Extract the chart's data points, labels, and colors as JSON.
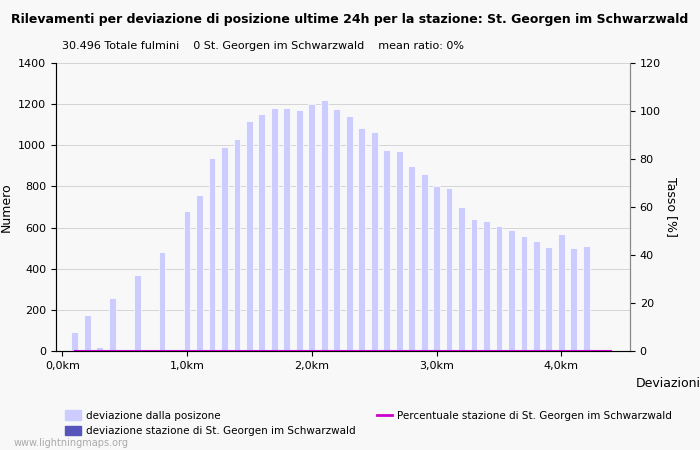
{
  "title": "Rilevamenti per deviazione di posizione ultime 24h per la stazione: St. Georgen im Schwarzwald",
  "subtitle": "30.496 Totale fulmini    0 St. Georgen im Schwarzwald    mean ratio: 0%",
  "ylabel_left": "Numero",
  "ylabel_right": "Tasso [%]",
  "xlabel": "Deviazioni",
  "watermark": "www.lightningmaps.org",
  "bar_color_light": "#ccccff",
  "bar_color_dark": "#5555bb",
  "line_color": "#cc00cc",
  "ylim_left": [
    0,
    1400
  ],
  "ylim_right": [
    0,
    120
  ],
  "yticks_left": [
    0,
    200,
    400,
    600,
    800,
    1000,
    1200,
    1400
  ],
  "yticks_right": [
    0,
    20,
    40,
    60,
    80,
    100,
    120
  ],
  "xtick_labels": [
    "0,0km",
    "1,0km",
    "2,0km",
    "3,0km",
    "4,0km"
  ],
  "xtick_positions": [
    0.0,
    1.0,
    2.0,
    3.0,
    4.0
  ],
  "x_values": [
    0.1,
    0.2,
    0.3,
    0.4,
    0.5,
    0.6,
    0.7,
    0.8,
    0.9,
    1.0,
    1.1,
    1.2,
    1.3,
    1.4,
    1.5,
    1.6,
    1.7,
    1.8,
    1.9,
    2.0,
    2.1,
    2.2,
    2.3,
    2.4,
    2.5,
    2.6,
    2.7,
    2.8,
    2.9,
    3.0,
    3.1,
    3.2,
    3.3,
    3.4,
    3.5,
    3.6,
    3.7,
    3.8,
    3.9,
    4.0,
    4.1,
    4.2,
    4.3,
    4.4
  ],
  "bar_values": [
    90,
    175,
    20,
    260,
    0,
    370,
    0,
    480,
    0,
    680,
    760,
    940,
    990,
    1030,
    1120,
    1150,
    1180,
    1180,
    1170,
    1200,
    1220,
    1175,
    1140,
    1085,
    1065,
    975,
    970,
    900,
    860,
    800,
    790,
    700,
    640,
    630,
    610,
    590,
    560,
    535,
    505,
    570,
    500,
    510,
    0,
    0
  ],
  "station_bar_values": [
    0,
    0,
    0,
    0,
    0,
    0,
    0,
    0,
    0,
    0,
    0,
    0,
    0,
    0,
    0,
    0,
    0,
    0,
    0,
    0,
    0,
    0,
    0,
    0,
    0,
    0,
    0,
    0,
    0,
    0,
    0,
    0,
    0,
    0,
    0,
    0,
    0,
    0,
    0,
    0,
    0,
    0,
    0,
    0
  ],
  "line_values": [
    0,
    0,
    0,
    0,
    0,
    0,
    0,
    0,
    0,
    0,
    0,
    0,
    0,
    0,
    0,
    0,
    0,
    0,
    0,
    0,
    0,
    0,
    0,
    0,
    0,
    0,
    0,
    0,
    0,
    0,
    0,
    0,
    0,
    0,
    0,
    0,
    0,
    0,
    0,
    0,
    0,
    0,
    0,
    0
  ],
  "legend_labels": [
    "deviazione dalla posizone",
    "deviazione stazione di St. Georgen im Schwarzwald",
    "Percentuale stazione di St. Georgen im Schwarzwald"
  ],
  "background_color": "#f8f8f8",
  "plot_bg": "#f8f8f8",
  "grid_color": "#cccccc",
  "title_fontsize": 9,
  "subtitle_fontsize": 8,
  "axis_fontsize": 9,
  "tick_fontsize": 8
}
